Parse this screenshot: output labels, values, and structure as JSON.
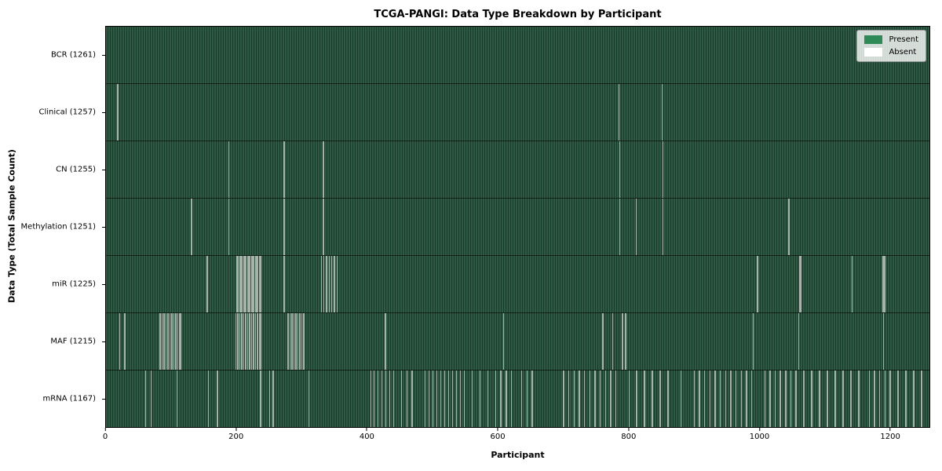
{
  "title": "TCGA-PANGI: Data Type Breakdown by Participant",
  "xlabel": "Participant",
  "ylabel": "Data Type (Total Sample Count)",
  "legend": {
    "present_label": "Present",
    "absent_label": "Absent"
  },
  "colors": {
    "present": "#2e8b57",
    "present_base": "#2e5a43",
    "present_dark": "#1a3b2c",
    "absent": "#ffffff",
    "absent_line": "#a7b3aa",
    "row_divider": "#1a1a1a"
  },
  "chart_data": {
    "type": "heatmap",
    "title": "TCGA-PANGI: Data Type Breakdown by Participant",
    "xlabel": "Participant",
    "ylabel": "Data Type (Total Sample Count)",
    "legend_entries": [
      "Present",
      "Absent"
    ],
    "legend_position": "upper right",
    "grid": false,
    "x_range": [
      0,
      1261
    ],
    "x_ticks": [
      0,
      200,
      400,
      600,
      800,
      1000,
      1200
    ],
    "total_participants": 1261,
    "rows": [
      {
        "label": "BCR (1261)",
        "data_type": "BCR",
        "present_count": 1261,
        "absent_count": 0,
        "absent_participants": []
      },
      {
        "label": "Clinical (1257)",
        "data_type": "Clinical",
        "present_count": 1257,
        "absent_count": 4,
        "absent_participants": [
          17,
          18,
          785,
          851
        ]
      },
      {
        "label": "CN (1255)",
        "data_type": "CN",
        "present_count": 1255,
        "absent_count": 6,
        "absent_participants": [
          187,
          272,
          273,
          332,
          786,
          852
        ]
      },
      {
        "label": "Methylation (1251)",
        "data_type": "Methylation",
        "present_count": 1251,
        "absent_count": 10,
        "absent_participants": [
          130,
          187,
          272,
          273,
          332,
          333,
          786,
          811,
          852,
          1045
        ]
      },
      {
        "label": "miR (1225)",
        "data_type": "miR",
        "present_count": 1225,
        "absent_count": 36,
        "absent_participants": [
          154,
          200,
          202,
          204,
          206,
          208,
          210,
          212,
          214,
          216,
          218,
          220,
          222,
          224,
          226,
          228,
          230,
          232,
          234,
          236,
          272,
          329,
          333,
          337,
          341,
          345,
          349,
          353,
          997,
          1062,
          1063,
          1142,
          1189,
          1190,
          1191,
          1192
        ]
      },
      {
        "label": "MAF (1215)",
        "data_type": "MAF",
        "present_count": 1215,
        "absent_count": 46,
        "absent_participants": [
          20,
          28,
          82,
          85,
          88,
          91,
          94,
          97,
          100,
          103,
          106,
          109,
          112,
          114,
          198,
          201,
          204,
          207,
          210,
          213,
          216,
          219,
          222,
          225,
          228,
          231,
          234,
          236,
          278,
          281,
          284,
          287,
          290,
          293,
          296,
          299,
          302,
          427,
          608,
          760,
          775,
          790,
          795,
          990,
          1060,
          1190
        ]
      },
      {
        "label": "mRNA (1167)",
        "data_type": "mRNA",
        "present_count": 1167,
        "absent_count": 94,
        "absent_participants": [
          60,
          68,
          108,
          156,
          170,
          236,
          250,
          255,
          310,
          405,
          410,
          416,
          422,
          428,
          434,
          440,
          452,
          460,
          468,
          488,
          494,
          500,
          506,
          512,
          518,
          524,
          530,
          536,
          542,
          548,
          560,
          572,
          584,
          596,
          604,
          612,
          620,
          636,
          644,
          652,
          700,
          708,
          716,
          724,
          732,
          740,
          748,
          756,
          764,
          772,
          780,
          800,
          812,
          824,
          836,
          848,
          860,
          880,
          900,
          908,
          916,
          924,
          932,
          940,
          948,
          956,
          964,
          972,
          980,
          988,
          1008,
          1016,
          1024,
          1032,
          1040,
          1048,
          1056,
          1068,
          1080,
          1092,
          1104,
          1116,
          1128,
          1140,
          1152,
          1168,
          1176,
          1184,
          1192,
          1200,
          1212,
          1224,
          1236,
          1248
        ]
      }
    ]
  }
}
